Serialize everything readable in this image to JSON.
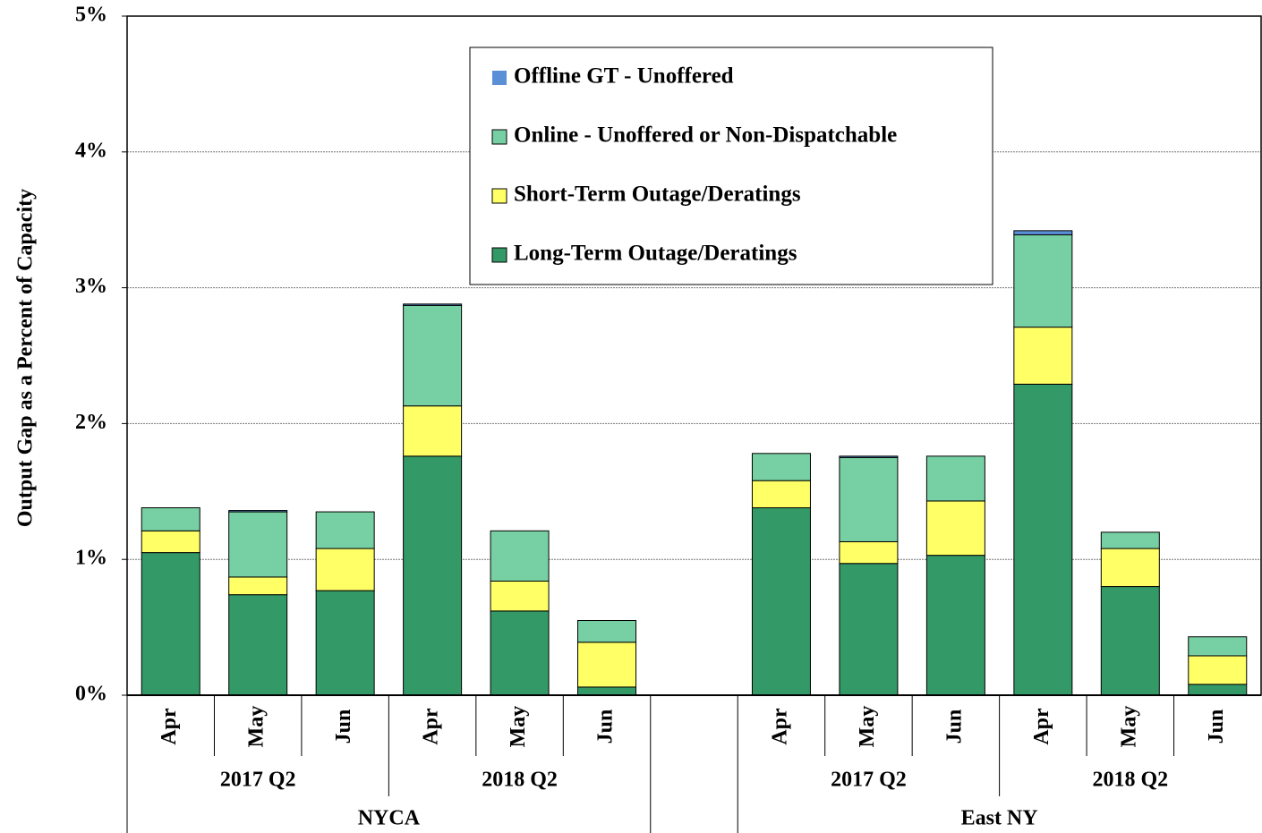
{
  "chart_data": {
    "type": "stacked_bar",
    "y_label": "Output Gap as a Percent of Capacity",
    "categories": [
      "Apr",
      "May",
      "Jun",
      "Apr",
      "May",
      "Jun",
      null,
      "Apr",
      "May",
      "Jun",
      "Apr",
      "May",
      "Jun"
    ],
    "groups": [
      {
        "name": "NYCA",
        "subgroups": [
          "2017 Q2",
          "2018 Q2"
        ]
      },
      {
        "name": "East NY",
        "subgroups": [
          "2017 Q2",
          "2018 Q2"
        ]
      }
    ],
    "series": [
      {
        "name": "Long-Term Outage/Deratings",
        "color": "#339966",
        "values": [
          1.05,
          0.74,
          0.77,
          1.76,
          0.62,
          0.06,
          null,
          1.38,
          0.97,
          1.03,
          2.29,
          0.8,
          0.08
        ]
      },
      {
        "name": "Short-Term Outage/Deratings",
        "color": "#ffff66",
        "values": [
          0.16,
          0.13,
          0.31,
          0.37,
          0.22,
          0.33,
          null,
          0.2,
          0.16,
          0.4,
          0.42,
          0.28,
          0.21
        ]
      },
      {
        "name": "Online - Unoffered or Non-Dispatchable",
        "color": "#77d0a3",
        "values": [
          0.17,
          0.48,
          0.27,
          0.74,
          0.37,
          0.16,
          null,
          0.2,
          0.62,
          0.33,
          0.68,
          0.12,
          0.14
        ]
      },
      {
        "name": "Offline GT - Unoffered",
        "color": "#5b8fd6",
        "values": [
          0,
          0.01,
          0,
          0.01,
          0,
          0,
          null,
          0,
          0.01,
          0,
          0.03,
          0,
          0
        ]
      }
    ],
    "ylim": [
      0,
      5
    ],
    "yticks": [
      {
        "value": 0,
        "label": "0%"
      },
      {
        "value": 1,
        "label": "1%"
      },
      {
        "value": 2,
        "label": "2%"
      },
      {
        "value": 3,
        "label": "3%"
      },
      {
        "value": 4,
        "label": "4%"
      },
      {
        "value": 5,
        "label": "5%"
      }
    ],
    "grid": true
  }
}
